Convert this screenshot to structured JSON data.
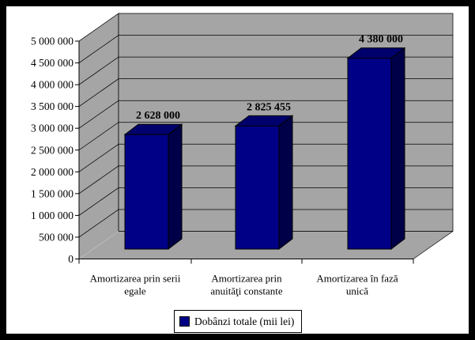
{
  "window": {
    "background": "#FFFFFF",
    "frame_color": "#000000"
  },
  "chart_data": {
    "type": "bar",
    "style": "3d-column",
    "title": "",
    "categories": [
      "Amortizarea prin serii egale",
      "Amortizarea prin anuităţi constante",
      "Amortizarea în fază unică"
    ],
    "category_lines": [
      [
        "Amortizarea prin serii",
        "egale"
      ],
      [
        "Amortizarea prin",
        "anuităţi constante"
      ],
      [
        "Amortizarea în fază",
        "unică"
      ]
    ],
    "series": [
      {
        "name": "Dobânzi totale (mii lei)",
        "values": [
          2628000,
          2825455,
          4380000
        ]
      }
    ],
    "value_labels": [
      "2 628 000",
      "2 825 455",
      "4 380 000"
    ],
    "xlabel": "",
    "ylabel": "",
    "ylim": [
      0,
      5000000
    ],
    "ytick_step": 500000,
    "ytick_labels": [
      "0",
      "500 000",
      "1 000 000",
      "1 500 000",
      "2 000 000",
      "2 500 000",
      "3 000 000",
      "3 500 000",
      "4 000 000",
      "4 500 000",
      "5 000 000"
    ],
    "grid": true,
    "legend_position": "bottom",
    "colors": {
      "bar_front": "#000087",
      "bar_top": "#00006C",
      "bar_side": "#000048",
      "wall": "#A5A5A5",
      "gridline": "#000000",
      "floor_left_edge": "#C0C0C0",
      "text": "#000000",
      "legend_bg": "#FFFFFF"
    }
  },
  "legend": {
    "label": "Dobânzi totale (mii lei)"
  }
}
